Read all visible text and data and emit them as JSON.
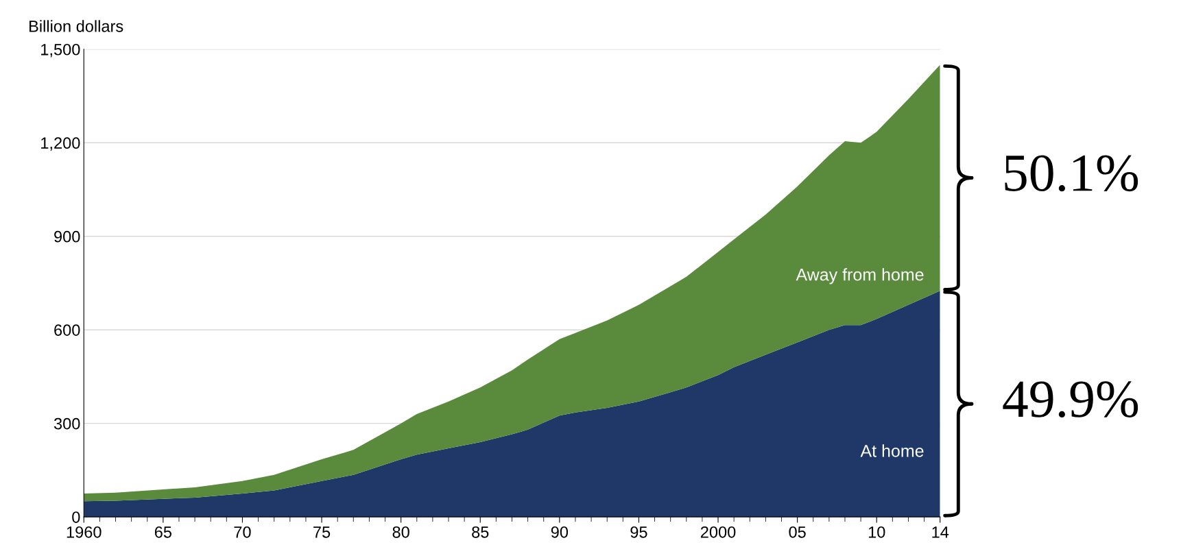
{
  "chart_data": {
    "type": "area",
    "stacked": true,
    "ylabel": "Billion dollars",
    "x": [
      1960,
      1962,
      1965,
      1967,
      1970,
      1972,
      1975,
      1977,
      1980,
      1981,
      1983,
      1985,
      1987,
      1988,
      1990,
      1991,
      1993,
      1995,
      1997,
      1998,
      2000,
      2001,
      2003,
      2005,
      2007,
      2008,
      2009,
      2010,
      2012,
      2014
    ],
    "series": [
      {
        "name": "At home",
        "color": "#1f3867",
        "values": [
          50,
          52,
          58,
          62,
          75,
          85,
          115,
          135,
          185,
          200,
          220,
          240,
          265,
          280,
          325,
          335,
          350,
          370,
          400,
          415,
          455,
          480,
          520,
          560,
          600,
          615,
          615,
          635,
          680,
          725
        ]
      },
      {
        "name": "Away from home",
        "color": "#5a8a3c",
        "values": [
          25,
          26,
          30,
          33,
          40,
          50,
          70,
          80,
          115,
          130,
          150,
          175,
          205,
          225,
          245,
          255,
          280,
          310,
          340,
          355,
          395,
          410,
          450,
          500,
          560,
          590,
          585,
          600,
          660,
          725
        ]
      }
    ],
    "xlim": [
      1960,
      2014
    ],
    "xticks": [
      1960,
      {
        "value": 1965,
        "label": "65"
      },
      {
        "value": 1970,
        "label": "70"
      },
      {
        "value": 1975,
        "label": "75"
      },
      {
        "value": 1980,
        "label": "80"
      },
      {
        "value": 1985,
        "label": "85"
      },
      {
        "value": 1990,
        "label": "90"
      },
      {
        "value": 1995,
        "label": "95"
      },
      2000,
      {
        "value": 2005,
        "label": "05"
      },
      {
        "value": 2010,
        "label": "10"
      },
      {
        "value": 2014,
        "label": "14"
      }
    ],
    "ylim": [
      0,
      1500
    ],
    "yticks": [
      0,
      {
        "value": 300,
        "label": "300"
      },
      {
        "value": 600,
        "label": "600"
      },
      {
        "value": 900,
        "label": "900"
      },
      {
        "value": 1200,
        "label": "1,200"
      },
      {
        "value": 1500,
        "label": "1,500"
      }
    ],
    "grid": "y",
    "legend": false,
    "annotations": [
      "49.9%",
      "50.1%"
    ]
  }
}
